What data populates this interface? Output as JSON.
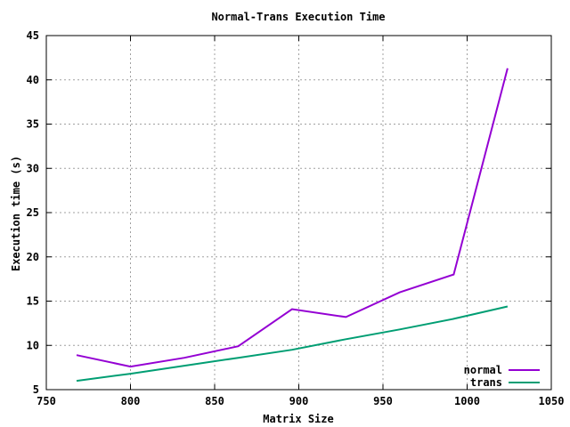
{
  "chart_data": {
    "type": "line",
    "title": "Normal-Trans Execution Time",
    "xlabel": "Matrix Size",
    "ylabel": "Execution time (s)",
    "xlim": [
      750,
      1050
    ],
    "ylim": [
      5,
      45
    ],
    "xticks": [
      750,
      800,
      850,
      900,
      950,
      1000,
      1050
    ],
    "yticks": [
      5,
      10,
      15,
      20,
      25,
      30,
      35,
      40,
      45
    ],
    "grid": true,
    "legend_position": "bottom-right",
    "series": [
      {
        "name": "normal",
        "color": "#9400d3",
        "x": [
          768,
          800,
          832,
          864,
          896,
          928,
          960,
          992,
          1024
        ],
        "y": [
          8.9,
          7.6,
          8.6,
          9.9,
          14.1,
          13.2,
          16.0,
          18.0,
          41.3
        ]
      },
      {
        "name": "trans",
        "color": "#009e73",
        "x": [
          768,
          800,
          832,
          864,
          896,
          928,
          960,
          992,
          1024
        ],
        "y": [
          6.0,
          6.8,
          7.7,
          8.6,
          9.5,
          10.7,
          11.8,
          13.0,
          14.4
        ]
      }
    ]
  }
}
